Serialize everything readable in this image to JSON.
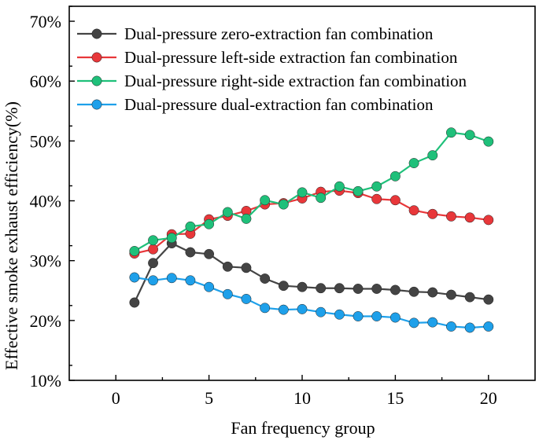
{
  "chart_data": {
    "type": "line",
    "title": "",
    "xlabel": "Fan frequency group",
    "ylabel": "Effective smoke exhaust efficiency(%)",
    "xlim": [
      -2.5,
      22.5
    ],
    "ylim": [
      10,
      72.5
    ],
    "xticks": [
      0,
      5,
      10,
      15,
      20
    ],
    "xtick_labels": [
      "0",
      "5",
      "10",
      "15",
      "20"
    ],
    "yticks": [
      10,
      20,
      30,
      40,
      50,
      60,
      70
    ],
    "ytick_labels": [
      "10%",
      "20%",
      "30%",
      "40%",
      "50%",
      "60%",
      "70%"
    ],
    "legend_position": "top-left",
    "x": [
      1,
      2,
      3,
      4,
      5,
      6,
      7,
      8,
      9,
      10,
      11,
      12,
      13,
      14,
      15,
      16,
      17,
      18,
      19,
      20
    ],
    "series": [
      {
        "name": "Dual-pressure zero-extraction fan combination",
        "color": "#444444",
        "values": [
          23.0,
          29.6,
          32.9,
          31.4,
          31.1,
          29.0,
          28.8,
          27.0,
          25.8,
          25.6,
          25.4,
          25.4,
          25.3,
          25.3,
          25.1,
          24.8,
          24.7,
          24.3,
          23.9,
          23.5
        ]
      },
      {
        "name": "Dual-pressure left-side extraction fan combination",
        "color": "#e8373a",
        "values": [
          31.2,
          31.9,
          34.4,
          34.5,
          36.9,
          37.5,
          38.3,
          39.4,
          39.6,
          40.4,
          41.5,
          41.7,
          41.3,
          40.3,
          40.1,
          38.4,
          37.8,
          37.4,
          37.2,
          36.8
        ]
      },
      {
        "name": "Dual-pressure right-side extraction fan combination",
        "color": "#1fc07a",
        "values": [
          31.6,
          33.4,
          33.8,
          35.7,
          36.1,
          38.1,
          37.0,
          40.1,
          39.4,
          41.4,
          40.5,
          42.4,
          41.6,
          42.4,
          44.1,
          46.3,
          47.6,
          51.4,
          51.0,
          49.9
        ]
      },
      {
        "name": "Dual-pressure dual-extraction fan combination",
        "color": "#1ea0ea",
        "values": [
          27.2,
          26.7,
          27.1,
          26.7,
          25.6,
          24.4,
          23.6,
          22.1,
          21.8,
          21.9,
          21.4,
          21.0,
          20.7,
          20.7,
          20.5,
          19.6,
          19.7,
          19.0,
          18.8,
          19.0
        ]
      }
    ]
  }
}
